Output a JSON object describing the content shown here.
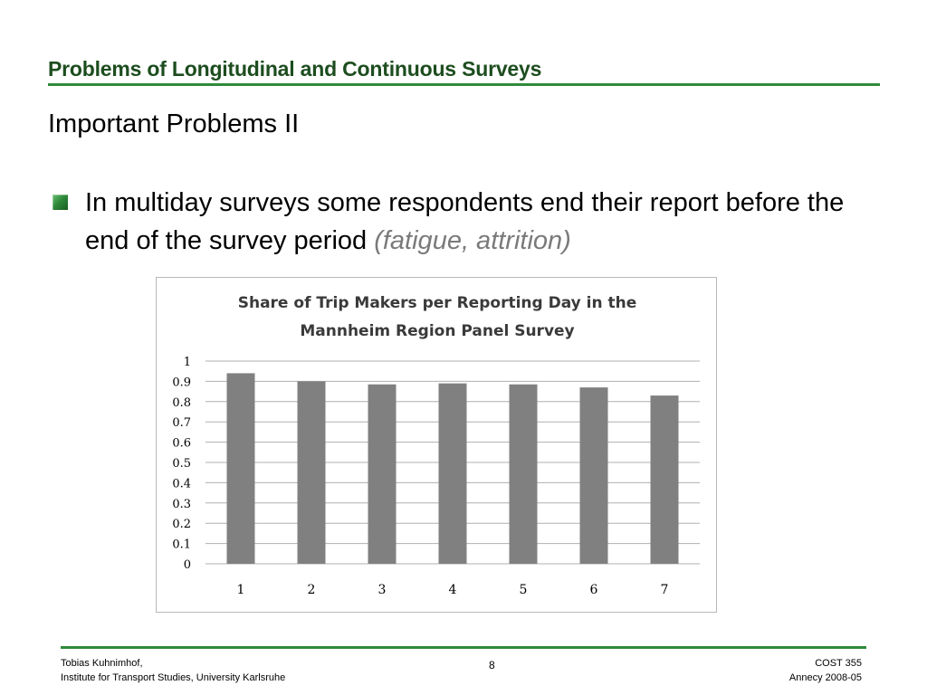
{
  "slide": {
    "title": "Problems of Longitudinal and Continuous Surveys",
    "subtitle": "Important Problems II",
    "bullet": {
      "text": "In multiday surveys some respondents end their report before the end of the survey period",
      "note": "(fatigue, attrition)"
    }
  },
  "footer": {
    "author": "Tobias Kuhnimhof,",
    "institute": "Institute for Transport Studies, University Karlsruhe",
    "page_number": "8",
    "event": "COST 355",
    "date": "Annecy 2008-05"
  },
  "colors": {
    "title": "#1d4d1f",
    "accent_rule": "#2f8a3a",
    "bar": "#808080",
    "gridline": "#b0b0b0"
  },
  "chart_data": {
    "type": "bar",
    "title_lines": [
      "Share of Trip Makers per Reporting Day in the",
      "Mannheim Region Panel Survey"
    ],
    "categories": [
      "1",
      "2",
      "3",
      "4",
      "5",
      "6",
      "7"
    ],
    "values": [
      0.94,
      0.9,
      0.885,
      0.89,
      0.885,
      0.87,
      0.83
    ],
    "ylim": [
      0,
      1
    ],
    "yticks": [
      "0",
      "0.1",
      "0.2",
      "0.3",
      "0.4",
      "0.5",
      "0.6",
      "0.7",
      "0.8",
      "0.9",
      "1"
    ],
    "grid": true,
    "legend": "none"
  }
}
